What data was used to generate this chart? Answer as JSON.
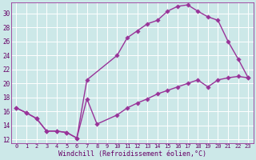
{
  "xlabel": "Windchill (Refroidissement éolien,°C)",
  "xlim": [
    -0.5,
    23.5
  ],
  "ylim": [
    11.5,
    31.5
  ],
  "yticks": [
    12,
    14,
    16,
    18,
    20,
    22,
    24,
    26,
    28,
    30
  ],
  "xticks": [
    0,
    1,
    2,
    3,
    4,
    5,
    6,
    7,
    8,
    9,
    10,
    11,
    12,
    13,
    14,
    15,
    16,
    17,
    18,
    19,
    20,
    21,
    22,
    23
  ],
  "bg_color": "#cce8e8",
  "grid_color": "#ffffff",
  "line_color": "#993399",
  "upper_x": [
    0,
    1,
    2,
    3,
    4,
    5,
    6,
    7,
    10,
    11,
    12,
    13,
    14,
    15,
    16,
    17,
    18,
    19,
    20,
    21,
    22,
    23
  ],
  "upper_y": [
    16.5,
    15.8,
    15.0,
    13.2,
    13.2,
    13.0,
    12.2,
    20.5,
    24.0,
    26.5,
    27.5,
    28.5,
    29.0,
    30.3,
    31.0,
    31.2,
    30.3,
    29.5,
    29.0,
    26.0,
    23.5,
    20.8
  ],
  "lower_x": [
    0,
    1,
    2,
    3,
    4,
    5,
    6,
    7,
    8,
    10,
    11,
    12,
    13,
    14,
    15,
    16,
    17,
    18,
    19,
    20,
    21,
    22,
    23
  ],
  "lower_y": [
    16.5,
    15.8,
    15.0,
    13.2,
    13.2,
    13.0,
    12.2,
    17.8,
    14.2,
    15.5,
    16.5,
    17.2,
    17.8,
    18.5,
    19.0,
    19.5,
    20.0,
    20.5,
    19.5,
    20.5,
    20.8,
    21.0,
    20.8
  ]
}
